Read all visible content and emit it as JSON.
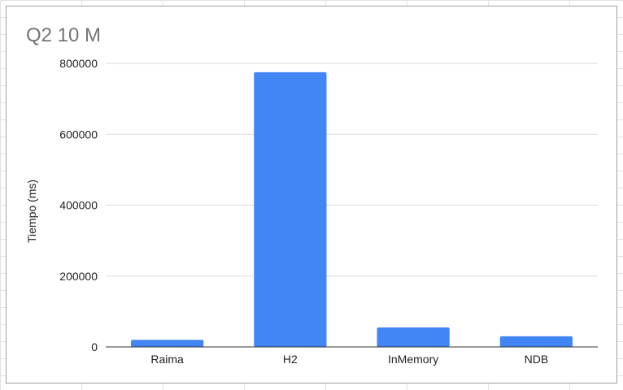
{
  "chart_data": {
    "type": "bar",
    "title": "Q2 10 M",
    "xlabel": "",
    "ylabel": "Tiempo (ms)",
    "categories": [
      "Raima",
      "H2",
      "InMemory",
      "NDB"
    ],
    "values": [
      20000,
      775000,
      55000,
      30000
    ],
    "ylim": [
      0,
      800000
    ],
    "yticks": [
      "0",
      "200000",
      "400000",
      "600000",
      "800000"
    ],
    "grid": true,
    "legend": "none",
    "bar_color": "#4285f4",
    "grid_color": "#d9d9d9",
    "axis_color": "#333333"
  }
}
